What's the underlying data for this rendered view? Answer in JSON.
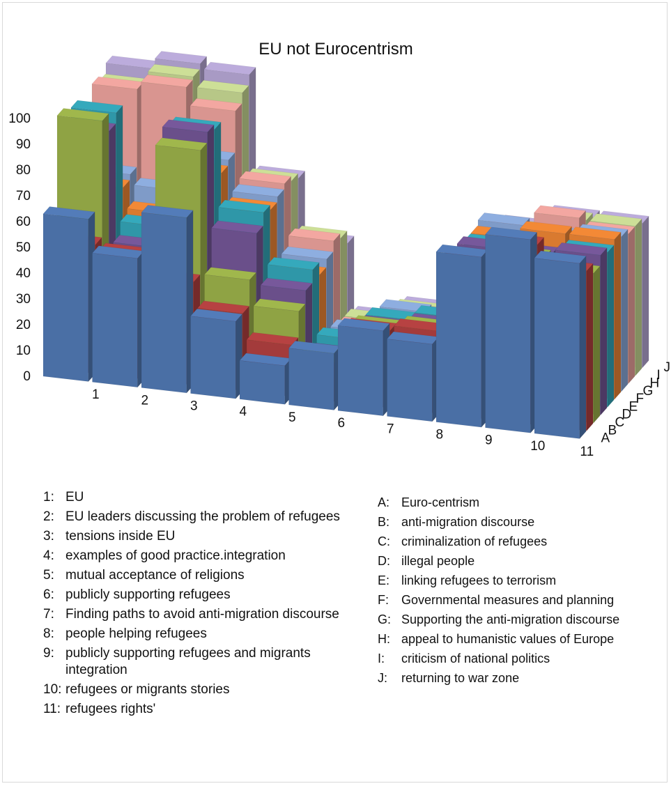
{
  "chart_data": {
    "type": "bar3d",
    "title": "EU not Eurocentrism",
    "yticks": [
      "0",
      "10",
      "20",
      "30",
      "40",
      "50",
      "60",
      "70",
      "80",
      "90",
      "100"
    ],
    "ylim": [
      0,
      100
    ],
    "categories": [
      "1",
      "2",
      "3",
      "4",
      "5",
      "6",
      "7",
      "8",
      "9",
      "10",
      "11"
    ],
    "series_codes": [
      "A",
      "B",
      "C",
      "D",
      "E",
      "F",
      "G",
      "H",
      "I",
      "J"
    ],
    "series": [
      {
        "code": "A",
        "values": [
          63,
          50,
          68,
          30,
          15,
          22,
          33,
          30,
          66,
          75,
          68
        ],
        "color": "#4a6fa5"
      },
      {
        "code": "B",
        "values": [
          50,
          48,
          40,
          30,
          20,
          12,
          30,
          32,
          62,
          70,
          62
        ],
        "color": "#a33b3b"
      },
      {
        "code": "C",
        "values": [
          95,
          40,
          88,
          40,
          30,
          15,
          28,
          30,
          58,
          62,
          58
        ],
        "color": "#8fa344"
      },
      {
        "code": "D",
        "values": [
          88,
          45,
          92,
          55,
          35,
          12,
          25,
          28,
          60,
          60,
          62
        ],
        "color": "#6a4f8a"
      },
      {
        "code": "E",
        "values": [
          92,
          50,
          90,
          60,
          40,
          15,
          25,
          28,
          58,
          56,
          60
        ],
        "color": "#2f97a8"
      },
      {
        "code": "F",
        "values": [
          60,
          52,
          70,
          58,
          35,
          10,
          20,
          22,
          58,
          62,
          62
        ],
        "color": "#d97a30"
      },
      {
        "code": "G",
        "values": [
          62,
          58,
          72,
          60,
          38,
          12,
          22,
          20,
          60,
          58,
          60
        ],
        "color": "#7f9bc8"
      },
      {
        "code": "H",
        "values": [
          92,
          95,
          88,
          62,
          42,
          10,
          18,
          18,
          55,
          62,
          58
        ],
        "color": "#d99590"
      },
      {
        "code": "I",
        "values": [
          90,
          96,
          92,
          60,
          40,
          10,
          16,
          16,
          52,
          58,
          58
        ],
        "color": "#b7c787"
      },
      {
        "code": "J",
        "values": [
          94,
          98,
          96,
          58,
          35,
          8,
          14,
          14,
          50,
          56,
          56
        ],
        "color": "#a89ac4"
      }
    ],
    "legend_categories": [
      {
        "key": "1:",
        "label": "EU"
      },
      {
        "key": "2:",
        "label": "EU leaders discussing the problem of refugees"
      },
      {
        "key": "3:",
        "label": "tensions inside EU"
      },
      {
        "key": "4:",
        "label": "examples of good practice.integration"
      },
      {
        "key": "5:",
        "label": "mutual acceptance of religions"
      },
      {
        "key": "6:",
        "label": "publicly supporting refugees"
      },
      {
        "key": "7:",
        "label": "Finding paths to avoid anti-migration discourse"
      },
      {
        "key": "8:",
        "label": "people helping refugees"
      },
      {
        "key": "9:",
        "label": "publicly supporting refugees and migrants integration"
      },
      {
        "key": "10:",
        "label": "refugees or migrants stories"
      },
      {
        "key": "11:",
        "label": "refugees rights'"
      }
    ],
    "legend_series": [
      {
        "key": "A:",
        "label": "Euro-centrism"
      },
      {
        "key": "B:",
        "label": "anti-migration discourse"
      },
      {
        "key": "C:",
        "label": "criminalization of refugees"
      },
      {
        "key": "D:",
        "label": "illegal people"
      },
      {
        "key": "E:",
        "label": "linking refugees to terrorism"
      },
      {
        "key": "F:",
        "label": "Governmental measures and planning"
      },
      {
        "key": "G:",
        "label": "Supporting the anti-migration discourse"
      },
      {
        "key": "H:",
        "label": "appeal to humanistic values of Europe"
      },
      {
        "key": "I:",
        "label": "criticism of national politics"
      },
      {
        "key": "J:",
        "label": "returning to war zone"
      }
    ]
  }
}
